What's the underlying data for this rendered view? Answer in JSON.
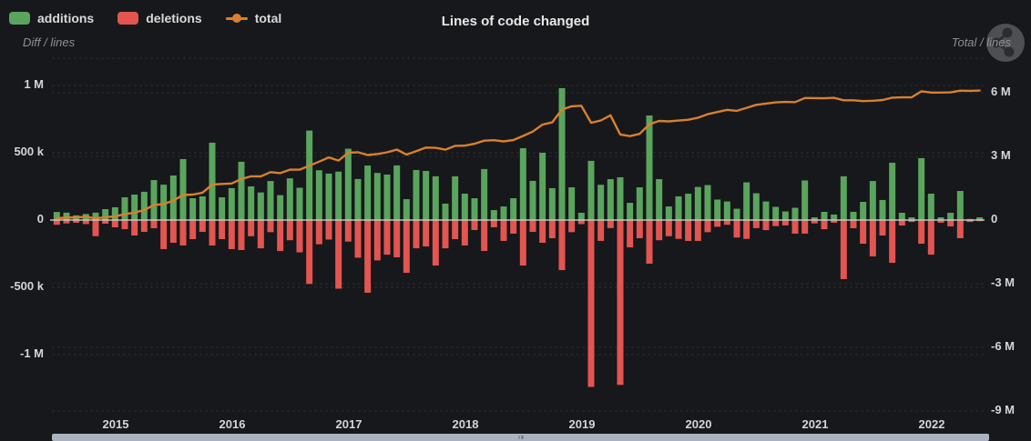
{
  "header": {
    "title": "Lines of code changed"
  },
  "legend": {
    "items": [
      {
        "label": "additions",
        "color": "#5aa55e",
        "type": "box"
      },
      {
        "label": "deletions",
        "color": "#e25550",
        "type": "box"
      },
      {
        "label": "total",
        "color": "#d8802e",
        "type": "line"
      }
    ]
  },
  "axes": {
    "left_caption": "Diff / lines",
    "right_caption": "Total / lines",
    "left_ticks": [
      {
        "label": "1 M",
        "value_k": 1000
      },
      {
        "label": "500 k",
        "value_k": 500
      },
      {
        "label": "0",
        "value_k": 0
      },
      {
        "label": "-500 k",
        "value_k": -500
      },
      {
        "label": "-1 M",
        "value_k": -1000
      }
    ],
    "right_ticks": [
      {
        "label": "6 M",
        "value_m": 6
      },
      {
        "label": "3 M",
        "value_m": 3
      },
      {
        "label": "0",
        "value_m": 0
      },
      {
        "label": "-3 M",
        "value_m": -3
      },
      {
        "label": "-6 M",
        "value_m": -6
      },
      {
        "label": "-9 M",
        "value_m": -9
      }
    ],
    "year_ticks": [
      "2015",
      "2016",
      "2017",
      "2018",
      "2019",
      "2020",
      "2021",
      "2022"
    ]
  },
  "icons": {
    "share": "share-icon"
  },
  "chart_data": {
    "type": "bar+line",
    "title": "Lines of code changed",
    "interval": "month",
    "x_start": "2014-07",
    "x_end": "2022-06",
    "unit": "thousand lines",
    "left_axis_label": "Diff / lines",
    "right_axis_label": "Total / lines",
    "left_axis_range_k": [
      -1200,
      1200
    ],
    "right_axis_range_m": [
      -9.6,
      7.6
    ],
    "grid": "dashed",
    "legend_position": "top-left",
    "series": [
      {
        "name": "additions",
        "type": "bar",
        "axis": "left",
        "color": "#5aa55e",
        "values_k": [
          60,
          55,
          35,
          45,
          55,
          81,
          95,
          169,
          189,
          210,
          297,
          263,
          331,
          453,
          162,
          176,
          575,
          169,
          237,
          433,
          250,
          205,
          290,
          185,
          310,
          240,
          665,
          370,
          345,
          360,
          530,
          305,
          405,
          350,
          338,
          406,
          155,
          372,
          365,
          325,
          122,
          325,
          196,
          162,
          379,
          74,
          101,
          162,
          534,
          291,
          500,
          237,
          980,
          243,
          54,
          440,
          262,
          304,
          318,
          128,
          243,
          777,
          304,
          101,
          176,
          196,
          246,
          260,
          152,
          138,
          84,
          280,
          199,
          138,
          98,
          64,
          91,
          294,
          20,
          61,
          41,
          325,
          61,
          135,
          290,
          149,
          426,
          54,
          20,
          460,
          196,
          20,
          54,
          216,
          8,
          20
        ]
      },
      {
        "name": "deletions",
        "type": "bar",
        "axis": "left",
        "color": "#e25550",
        "values_k": [
          -35,
          -25,
          -20,
          -30,
          -120,
          -27,
          -54,
          -68,
          -115,
          -88,
          -61,
          -216,
          -169,
          -189,
          -142,
          -88,
          -189,
          -142,
          -216,
          -223,
          -120,
          -210,
          -90,
          -230,
          -150,
          -240,
          -475,
          -180,
          -145,
          -510,
          -160,
          -280,
          -540,
          -300,
          -257,
          -277,
          -392,
          -210,
          -196,
          -338,
          -210,
          -142,
          -189,
          -74,
          -230,
          -54,
          -155,
          -101,
          -338,
          -88,
          -169,
          -135,
          -372,
          -90,
          -30,
          -1240,
          -155,
          -60,
          -1225,
          -203,
          -135,
          -324,
          -150,
          -120,
          -140,
          -155,
          -155,
          -90,
          -50,
          -35,
          -130,
          -140,
          -60,
          -75,
          -45,
          -40,
          -101,
          -101,
          -25,
          -68,
          -20,
          -439,
          -61,
          -176,
          -270,
          -115,
          -318,
          -41,
          -14,
          -176,
          -257,
          -20,
          -47,
          -135,
          -14,
          -8
        ]
      },
      {
        "name": "total",
        "type": "line",
        "axis": "right",
        "color": "#d8802e",
        "values_k": [
          85,
          115,
          130,
          145,
          80,
          134,
          175,
          276,
          350,
          472,
          708,
          755,
          917,
          1181,
          1201,
          1289,
          1675,
          1702,
          1723,
          1933,
          2063,
          2058,
          2258,
          2213,
          2373,
          2373,
          2563,
          2753,
          2953,
          2803,
          3173,
          3198,
          3063,
          3113,
          3194,
          3323,
          3086,
          3248,
          3417,
          3404,
          3316,
          3499,
          3506,
          3594,
          3743,
          3763,
          3709,
          3770,
          3966,
          4169,
          4500,
          4602,
          5210,
          5363,
          5387,
          4587,
          4694,
          4938,
          4031,
          3956,
          4064,
          4517,
          4671,
          4652,
          4688,
          4729,
          4820,
          4990,
          5092,
          5195,
          5149,
          5289,
          5428,
          5491,
          5544,
          5568,
          5558,
          5751,
          5746,
          5739,
          5760,
          5646,
          5646,
          5605,
          5625,
          5659,
          5767,
          5780,
          5786,
          6070,
          6009,
          6009,
          6016,
          6097,
          6091,
          6103
        ]
      }
    ]
  }
}
